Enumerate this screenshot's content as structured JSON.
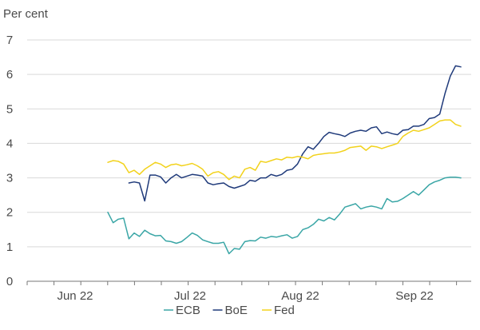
{
  "chart_data": {
    "type": "line",
    "y_unit_label": "Per cent",
    "ylim": [
      0,
      7
    ],
    "y_ticks": [
      "0",
      "1",
      "2",
      "3",
      "4",
      "5",
      "6",
      "7"
    ],
    "x_ticks": [
      "Jun 22",
      "Jul 22",
      "Aug 22",
      "Sep 22"
    ],
    "grid": "horizontal",
    "legend_position": "bottom",
    "series": [
      {
        "name": "ECB",
        "color": "#3aa6a6",
        "values": [
          [
            0,
            2.0
          ],
          [
            1,
            1.7
          ],
          [
            2,
            1.8
          ],
          [
            3,
            1.83
          ],
          [
            4,
            1.23
          ],
          [
            5,
            1.4
          ],
          [
            6,
            1.3
          ],
          [
            7,
            1.48
          ],
          [
            8,
            1.38
          ],
          [
            9,
            1.32
          ],
          [
            10,
            1.33
          ],
          [
            11,
            1.17
          ],
          [
            12,
            1.15
          ],
          [
            13,
            1.1
          ],
          [
            14,
            1.15
          ],
          [
            15,
            1.27
          ],
          [
            16,
            1.4
          ],
          [
            17,
            1.33
          ],
          [
            18,
            1.2
          ],
          [
            19,
            1.15
          ],
          [
            20,
            1.1
          ],
          [
            21,
            1.1
          ],
          [
            22,
            1.13
          ],
          [
            23,
            0.8
          ],
          [
            24,
            0.95
          ],
          [
            25,
            0.93
          ],
          [
            26,
            1.15
          ],
          [
            27,
            1.18
          ],
          [
            28,
            1.17
          ],
          [
            29,
            1.28
          ],
          [
            30,
            1.25
          ],
          [
            31,
            1.3
          ],
          [
            32,
            1.28
          ],
          [
            33,
            1.32
          ],
          [
            34,
            1.35
          ],
          [
            35,
            1.25
          ],
          [
            36,
            1.3
          ],
          [
            37,
            1.5
          ],
          [
            38,
            1.55
          ],
          [
            39,
            1.65
          ],
          [
            40,
            1.8
          ],
          [
            41,
            1.75
          ],
          [
            42,
            1.85
          ],
          [
            43,
            1.78
          ],
          [
            44,
            1.95
          ],
          [
            45,
            2.15
          ],
          [
            46,
            2.2
          ],
          [
            47,
            2.25
          ],
          [
            48,
            2.1
          ],
          [
            49,
            2.15
          ],
          [
            50,
            2.18
          ],
          [
            51,
            2.15
          ],
          [
            52,
            2.1
          ],
          [
            53,
            2.4
          ],
          [
            54,
            2.3
          ],
          [
            55,
            2.32
          ],
          [
            56,
            2.4
          ],
          [
            57,
            2.5
          ],
          [
            58,
            2.6
          ],
          [
            59,
            2.5
          ],
          [
            60,
            2.65
          ],
          [
            61,
            2.8
          ],
          [
            62,
            2.88
          ],
          [
            63,
            2.93
          ],
          [
            64,
            3.0
          ],
          [
            65,
            3.02
          ],
          [
            66,
            3.02
          ],
          [
            67,
            3.0
          ]
        ]
      },
      {
        "name": "BoE",
        "color": "#1f3a7a",
        "values": [
          [
            4,
            2.85
          ],
          [
            5,
            2.88
          ],
          [
            6,
            2.85
          ],
          [
            7,
            2.33
          ],
          [
            8,
            3.08
          ],
          [
            9,
            3.08
          ],
          [
            10,
            3.03
          ],
          [
            11,
            2.85
          ],
          [
            12,
            3.0
          ],
          [
            13,
            3.1
          ],
          [
            14,
            3.0
          ],
          [
            15,
            3.05
          ],
          [
            16,
            3.1
          ],
          [
            17,
            3.08
          ],
          [
            18,
            3.05
          ],
          [
            19,
            2.85
          ],
          [
            20,
            2.8
          ],
          [
            21,
            2.83
          ],
          [
            22,
            2.85
          ],
          [
            23,
            2.75
          ],
          [
            24,
            2.7
          ],
          [
            25,
            2.75
          ],
          [
            26,
            2.8
          ],
          [
            27,
            2.93
          ],
          [
            28,
            2.9
          ],
          [
            29,
            3.0
          ],
          [
            30,
            3.0
          ],
          [
            31,
            3.1
          ],
          [
            32,
            3.05
          ],
          [
            33,
            3.1
          ],
          [
            34,
            3.22
          ],
          [
            35,
            3.25
          ],
          [
            36,
            3.4
          ],
          [
            37,
            3.7
          ],
          [
            38,
            3.9
          ],
          [
            39,
            3.83
          ],
          [
            40,
            4.0
          ],
          [
            41,
            4.2
          ],
          [
            42,
            4.32
          ],
          [
            43,
            4.28
          ],
          [
            44,
            4.25
          ],
          [
            45,
            4.2
          ],
          [
            46,
            4.3
          ],
          [
            47,
            4.35
          ],
          [
            48,
            4.38
          ],
          [
            49,
            4.35
          ],
          [
            50,
            4.45
          ],
          [
            51,
            4.48
          ],
          [
            52,
            4.28
          ],
          [
            53,
            4.33
          ],
          [
            54,
            4.28
          ],
          [
            55,
            4.25
          ],
          [
            56,
            4.38
          ],
          [
            57,
            4.4
          ],
          [
            58,
            4.5
          ],
          [
            59,
            4.5
          ],
          [
            60,
            4.55
          ],
          [
            61,
            4.72
          ],
          [
            62,
            4.75
          ],
          [
            63,
            4.85
          ],
          [
            64,
            5.45
          ],
          [
            65,
            5.95
          ],
          [
            66,
            6.25
          ],
          [
            67,
            6.22
          ]
        ]
      },
      {
        "name": "Fed",
        "color": "#f2d21b",
        "values": [
          [
            0,
            3.45
          ],
          [
            1,
            3.5
          ],
          [
            2,
            3.48
          ],
          [
            3,
            3.4
          ],
          [
            4,
            3.15
          ],
          [
            5,
            3.22
          ],
          [
            6,
            3.1
          ],
          [
            7,
            3.25
          ],
          [
            8,
            3.35
          ],
          [
            9,
            3.45
          ],
          [
            10,
            3.4
          ],
          [
            11,
            3.3
          ],
          [
            12,
            3.38
          ],
          [
            13,
            3.4
          ],
          [
            14,
            3.35
          ],
          [
            15,
            3.38
          ],
          [
            16,
            3.42
          ],
          [
            17,
            3.35
          ],
          [
            18,
            3.25
          ],
          [
            19,
            3.05
          ],
          [
            20,
            3.15
          ],
          [
            21,
            3.18
          ],
          [
            22,
            3.1
          ],
          [
            23,
            2.95
          ],
          [
            24,
            3.05
          ],
          [
            25,
            3.0
          ],
          [
            26,
            3.25
          ],
          [
            27,
            3.3
          ],
          [
            28,
            3.22
          ],
          [
            29,
            3.48
          ],
          [
            30,
            3.45
          ],
          [
            31,
            3.5
          ],
          [
            32,
            3.55
          ],
          [
            33,
            3.52
          ],
          [
            34,
            3.6
          ],
          [
            35,
            3.58
          ],
          [
            36,
            3.62
          ],
          [
            37,
            3.6
          ],
          [
            38,
            3.55
          ],
          [
            39,
            3.65
          ],
          [
            40,
            3.68
          ],
          [
            41,
            3.7
          ],
          [
            42,
            3.72
          ],
          [
            43,
            3.72
          ],
          [
            44,
            3.75
          ],
          [
            45,
            3.8
          ],
          [
            46,
            3.88
          ],
          [
            47,
            3.9
          ],
          [
            48,
            3.92
          ],
          [
            49,
            3.8
          ],
          [
            50,
            3.92
          ],
          [
            51,
            3.9
          ],
          [
            52,
            3.85
          ],
          [
            53,
            3.9
          ],
          [
            54,
            3.95
          ],
          [
            55,
            4.0
          ],
          [
            56,
            4.2
          ],
          [
            57,
            4.3
          ],
          [
            58,
            4.38
          ],
          [
            59,
            4.35
          ],
          [
            60,
            4.4
          ],
          [
            61,
            4.45
          ],
          [
            62,
            4.55
          ],
          [
            63,
            4.65
          ],
          [
            64,
            4.68
          ],
          [
            65,
            4.68
          ],
          [
            66,
            4.55
          ],
          [
            67,
            4.5
          ]
        ]
      }
    ]
  }
}
